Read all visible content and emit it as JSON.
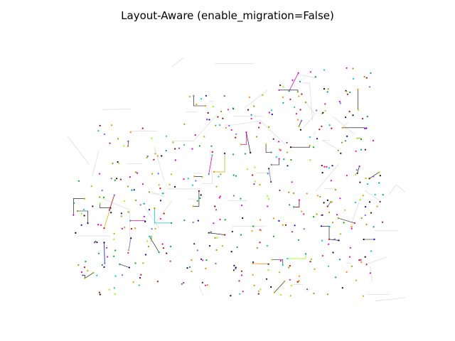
{
  "figure": {
    "title": "Layout-Aware (enable_migration=False)"
  },
  "graph": {
    "description_colors": {
      "background_edges": "#dddddd",
      "route_palette": [
        "#000000",
        "#0000cc",
        "#cc0000",
        "#00aa00",
        "#cc00cc",
        "#00cccc",
        "#ccaa00",
        "#ff8800",
        "#6666ff",
        "#009999",
        "#999900",
        "#660000",
        "#ff00aa",
        "#88ff00"
      ]
    },
    "seed": 42
  }
}
